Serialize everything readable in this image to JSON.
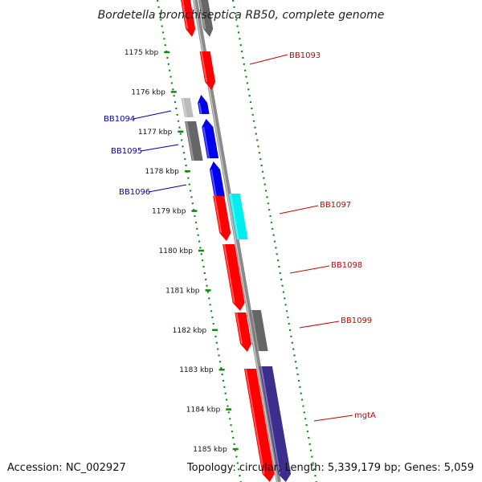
{
  "title": "Bordetella bronchiseptica RB50, complete genome",
  "accession": "Accession: NC_002927",
  "summary": "Topology: circular; Length: 5,339,179 bp; Genes: 5,059",
  "colors": {
    "forward": "#ff0000",
    "reverse": "#0000ee",
    "gray": "#666666",
    "light_gray": "#bbbbbb",
    "cyan": "#00eeee",
    "navy": "#3c2e8c",
    "axis": "#8a8a8a",
    "ruler": "#118811",
    "forward_label": "#cc0000",
    "reverse_label": "#0000aa"
  },
  "ruler_ticks": [
    "1175 kbp",
    "1176 kbp",
    "1177 kbp",
    "1178 kbp",
    "1179 kbp",
    "1180 kbp",
    "1181 kbp",
    "1182 kbp",
    "1183 kbp",
    "1184 kbp",
    "1185 kbp"
  ],
  "gene_labels": [
    {
      "name": "BB1093",
      "strand": "forward"
    },
    {
      "name": "BB1094",
      "strand": "reverse"
    },
    {
      "name": "BB1095",
      "strand": "reverse"
    },
    {
      "name": "BB1096",
      "strand": "reverse"
    },
    {
      "name": "BB1097",
      "strand": "forward"
    },
    {
      "name": "BB1098",
      "strand": "forward"
    },
    {
      "name": "BB1099",
      "strand": "forward"
    },
    {
      "name": "mgtA",
      "strand": "forward"
    }
  ]
}
